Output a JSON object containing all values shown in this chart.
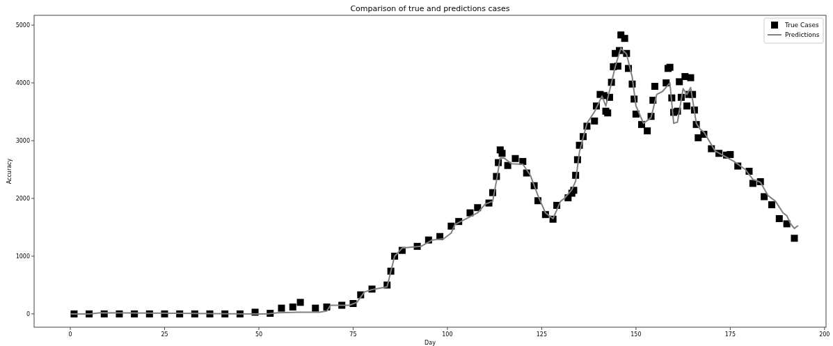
{
  "chart_data": {
    "type": "scatter",
    "title": "Comparison of true and predictions cases",
    "xlabel": "Day",
    "ylabel": "Accuracy",
    "xlim": [
      -9.6,
      200.4
    ],
    "ylim": [
      -230,
      5170
    ],
    "xticks": [
      0,
      25,
      50,
      75,
      100,
      125,
      150,
      175,
      200
    ],
    "yticks": [
      0,
      1000,
      2000,
      3000,
      4000,
      5000
    ],
    "legend": "top right",
    "grid": false,
    "series": [
      {
        "name": "True Cases",
        "marker": "square",
        "color": "#000000",
        "x": [
          1,
          5,
          9,
          13,
          17,
          21,
          25,
          29,
          33,
          37,
          41,
          45,
          49,
          53,
          56,
          59,
          61,
          65,
          68,
          72,
          75,
          77,
          80,
          84,
          85,
          86,
          88,
          92,
          95,
          98,
          101,
          103,
          106,
          108,
          111,
          112,
          113,
          113.5,
          114,
          114.5,
          116,
          118,
          120,
          121,
          123,
          124,
          126,
          128,
          129,
          132,
          133,
          133.5,
          134,
          134.5,
          135,
          136,
          137,
          139,
          139.5,
          140.5,
          141.5,
          142,
          142.5,
          143,
          143.5,
          144,
          144.5,
          145.2,
          145.6,
          146,
          147,
          147.5,
          148,
          149,
          149.5,
          150,
          151.5,
          153,
          154,
          154.5,
          155,
          158,
          158.5,
          159,
          159.5,
          160,
          161,
          161.5,
          162,
          163,
          163.5,
          164,
          164.5,
          165,
          165.5,
          166,
          166.5,
          168,
          170,
          172,
          174,
          175,
          177,
          180,
          181,
          183,
          184,
          186,
          188,
          190,
          192
        ],
        "values": [
          0,
          0,
          0,
          0,
          0,
          0,
          0,
          0,
          0,
          0,
          0,
          0,
          30,
          10,
          100,
          120,
          200,
          100,
          120,
          150,
          180,
          330,
          430,
          500,
          740,
          1000,
          1100,
          1170,
          1280,
          1340,
          1520,
          1600,
          1750,
          1840,
          1920,
          2100,
          2380,
          2620,
          2840,
          2780,
          2570,
          2690,
          2640,
          2440,
          2220,
          1960,
          1720,
          1640,
          1880,
          2010,
          2090,
          2140,
          2400,
          2670,
          2920,
          3070,
          3250,
          3340,
          3600,
          3800,
          3780,
          3510,
          3480,
          3750,
          4010,
          4280,
          4510,
          4290,
          4560,
          4830,
          4770,
          4510,
          4250,
          3980,
          3720,
          3460,
          3280,
          3170,
          3420,
          3700,
          3940,
          4000,
          4250,
          4270,
          3740,
          3490,
          3510,
          4020,
          3750,
          4110,
          3600,
          3800,
          4090,
          3800,
          3530,
          3280,
          3050,
          3110,
          2860,
          2780,
          2750,
          2760,
          2560,
          2470,
          2260,
          2290,
          2030,
          1890,
          1650,
          1560,
          1310
        ]
      },
      {
        "name": "Predictions",
        "type": "line",
        "marker": "none",
        "line_style": "solid",
        "color": "#808080",
        "x": [
          0,
          5,
          8,
          48,
          52,
          55,
          60,
          66,
          68,
          69,
          74,
          76,
          78,
          80,
          84,
          86,
          88,
          93,
          96,
          99,
          101,
          102,
          105,
          108,
          110,
          112,
          113,
          114,
          115,
          117,
          120,
          122,
          124,
          126,
          128,
          130,
          131,
          133,
          134,
          135,
          137,
          139,
          141,
          142,
          143.5,
          144.5,
          145.5,
          146,
          147.5,
          149,
          150,
          152,
          154,
          155.5,
          157,
          159,
          160,
          161,
          162.5,
          163.5,
          164.5,
          166,
          167,
          168,
          171,
          173,
          176,
          179,
          181,
          183,
          185,
          187,
          189,
          190,
          191,
          192,
          193
        ],
        "values": [
          0,
          0,
          20,
          0,
          0,
          20,
          30,
          30,
          50,
          150,
          150,
          200,
          380,
          420,
          470,
          1000,
          1140,
          1170,
          1280,
          1300,
          1400,
          1550,
          1650,
          1750,
          1900,
          1950,
          2300,
          2700,
          2700,
          2600,
          2590,
          2400,
          2050,
          1750,
          1650,
          1950,
          2000,
          2150,
          2300,
          2800,
          3300,
          3500,
          3770,
          3600,
          4000,
          4280,
          4500,
          4600,
          4500,
          4100,
          3600,
          3300,
          3400,
          3800,
          3850,
          4000,
          3300,
          3320,
          3900,
          3800,
          3920,
          3300,
          3200,
          3150,
          2820,
          2750,
          2640,
          2500,
          2330,
          2280,
          2050,
          1950,
          1750,
          1700,
          1560,
          1480,
          1530
        ]
      }
    ]
  }
}
